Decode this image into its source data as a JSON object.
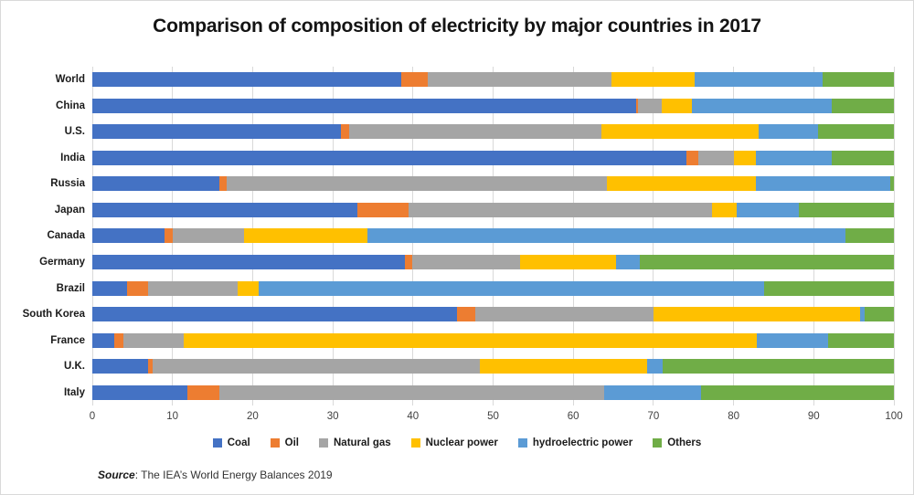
{
  "title": "Comparison of composition of electricity by major countries in 2017",
  "source": {
    "label": "Source",
    "text": ": The IEA’s World Energy Balances 2019"
  },
  "chart_data": {
    "type": "bar",
    "orientation": "horizontal",
    "stacked": true,
    "grid": true,
    "legend_position": "bottom",
    "title": "Comparison of composition of electricity by major countries in 2017",
    "xlabel": "",
    "ylabel": "",
    "x_axis": {
      "min": 0,
      "max": 100,
      "tick_step": 10,
      "ticks": [
        "0",
        "10",
        "20",
        "30",
        "40",
        "50",
        "60",
        "70",
        "80",
        "90",
        "100"
      ]
    },
    "categories": [
      "World",
      "China",
      "U.S.",
      "India",
      "Russia",
      "Japan",
      "Canada",
      "Germany",
      "Brazil",
      "South Korea",
      "France",
      "U.K.",
      "Italy"
    ],
    "series": [
      {
        "name": "Coal",
        "color": "#4472C4",
        "values": [
          38.5,
          67.9,
          31.0,
          74.1,
          15.9,
          33.1,
          9.0,
          39.0,
          4.3,
          45.5,
          2.7,
          6.9,
          11.9
        ]
      },
      {
        "name": "Oil",
        "color": "#ED7D31",
        "values": [
          3.3,
          0.2,
          1.0,
          1.5,
          0.9,
          6.4,
          1.0,
          0.9,
          2.7,
          2.3,
          1.2,
          0.6,
          3.9
        ]
      },
      {
        "name": "Natural gas",
        "color": "#A5A5A5",
        "values": [
          23.0,
          2.9,
          31.5,
          4.4,
          47.4,
          37.8,
          8.9,
          13.5,
          11.1,
          22.2,
          7.5,
          40.8,
          48.1
        ]
      },
      {
        "name": "Nuclear power",
        "color": "#FFC000",
        "values": [
          10.3,
          3.8,
          19.6,
          2.8,
          18.6,
          3.1,
          15.4,
          11.9,
          2.7,
          25.8,
          71.5,
          20.9,
          0.0
        ]
      },
      {
        "name": "hydroelectric power",
        "color": "#5B9BD5",
        "values": [
          16.0,
          17.5,
          7.4,
          9.4,
          16.8,
          7.8,
          59.7,
          3.0,
          63.0,
          0.6,
          8.9,
          1.9,
          12.1
        ]
      },
      {
        "name": "Others",
        "color": "#70AD47",
        "values": [
          8.9,
          7.7,
          9.5,
          7.8,
          0.4,
          11.8,
          6.0,
          31.7,
          16.2,
          3.6,
          8.2,
          28.9,
          24.0
        ]
      }
    ]
  }
}
